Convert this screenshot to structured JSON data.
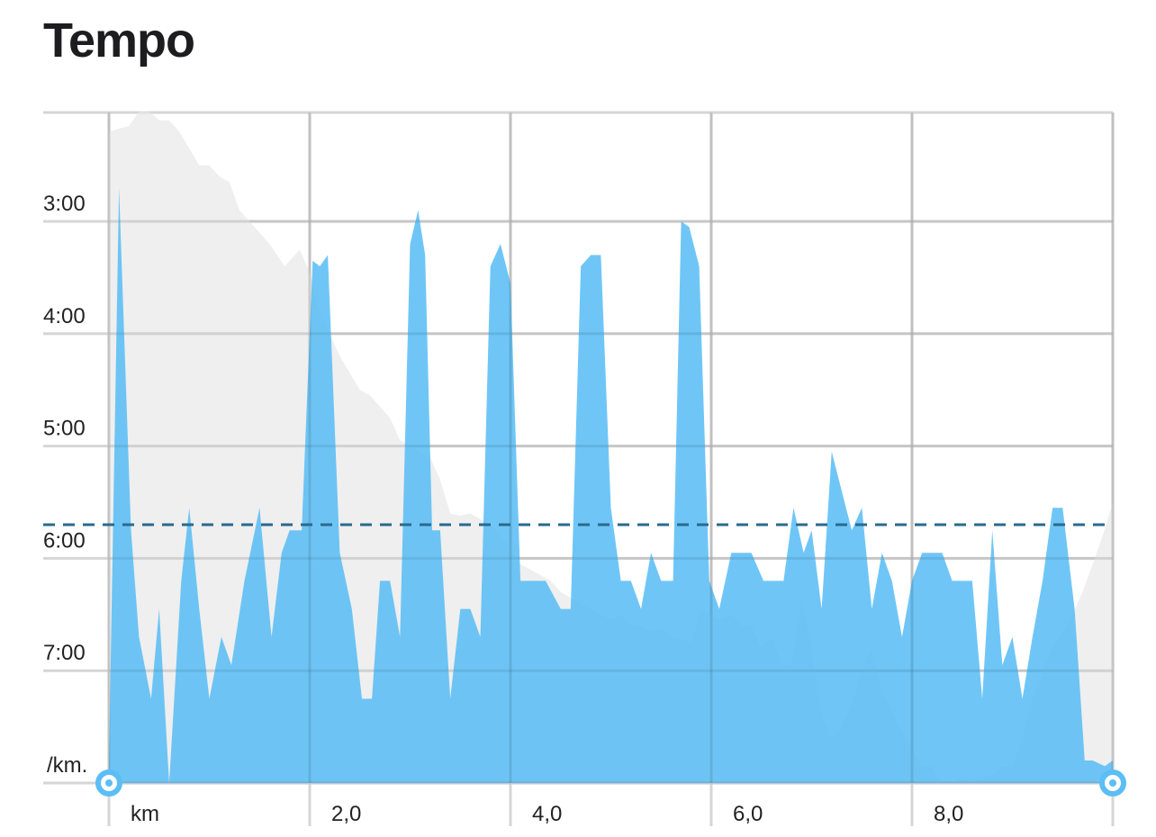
{
  "title": "Tempo",
  "colors": {
    "pace_fill": "#5bbef5",
    "elevation_fill": "#e6e6e6",
    "average_line": "#2a6a8f",
    "grid": "#d6d6d6",
    "handle": "#5bbef5"
  },
  "chart_data": {
    "type": "area",
    "title": "Tempo",
    "xlabel": "km",
    "ylabel": "/km.",
    "xlim": [
      0,
      10
    ],
    "x_ticks": [
      0,
      2,
      4,
      6,
      8,
      10
    ],
    "x_tick_labels": [
      "km",
      "2,0",
      "4,0",
      "6,0",
      "8,0",
      ""
    ],
    "ylim": [
      2.03,
      8.0
    ],
    "y_reversed": true,
    "y_ticks": [
      3,
      4,
      5,
      6,
      7,
      8
    ],
    "y_tick_labels": [
      "3:00",
      "4:00",
      "5:00",
      "6:00",
      "7:00",
      "/km."
    ],
    "grid": true,
    "average_pace": 5.7,
    "series": [
      {
        "kind": "pace",
        "x": [
          0.0,
          0.1,
          0.22,
          0.3,
          0.42,
          0.5,
          0.6,
          0.72,
          0.8,
          0.9,
          1.0,
          1.12,
          1.22,
          1.35,
          1.5,
          1.62,
          1.72,
          1.8,
          1.92,
          2.03,
          2.1,
          2.18,
          2.3,
          2.42,
          2.52,
          2.62,
          2.7,
          2.8,
          2.9,
          3.0,
          3.08,
          3.15,
          3.22,
          3.3,
          3.4,
          3.5,
          3.6,
          3.7,
          3.8,
          3.9,
          4.0,
          4.1,
          4.2,
          4.35,
          4.5,
          4.6,
          4.7,
          4.8,
          4.9,
          5.0,
          5.1,
          5.2,
          5.3,
          5.4,
          5.5,
          5.62,
          5.7,
          5.78,
          5.88,
          5.98,
          6.08,
          6.2,
          6.3,
          6.4,
          6.52,
          6.62,
          6.72,
          6.82,
          6.92,
          7.0,
          7.1,
          7.2,
          7.3,
          7.4,
          7.5,
          7.6,
          7.7,
          7.8,
          7.9,
          8.0,
          8.1,
          8.2,
          8.3,
          8.4,
          8.5,
          8.6,
          8.7,
          8.8,
          8.9,
          9.0,
          9.1,
          9.2,
          9.3,
          9.4,
          9.5,
          9.62,
          9.72,
          9.8,
          9.92,
          10.0
        ],
        "values": [
          7.8,
          2.7,
          5.75,
          6.7,
          7.25,
          6.45,
          8.0,
          6.2,
          5.55,
          6.45,
          7.25,
          6.7,
          6.95,
          6.2,
          5.55,
          6.7,
          5.95,
          5.75,
          5.75,
          3.35,
          3.4,
          3.3,
          5.95,
          6.45,
          7.25,
          7.25,
          6.2,
          6.2,
          6.7,
          3.2,
          2.9,
          3.3,
          5.75,
          5.75,
          7.25,
          6.45,
          6.45,
          6.7,
          3.4,
          3.2,
          3.55,
          6.2,
          6.2,
          6.2,
          6.45,
          6.45,
          3.4,
          3.3,
          3.3,
          5.55,
          6.2,
          6.2,
          6.45,
          5.95,
          6.2,
          6.2,
          3.0,
          3.05,
          3.4,
          6.2,
          6.45,
          5.95,
          5.95,
          5.95,
          6.2,
          6.2,
          6.2,
          5.55,
          5.95,
          5.75,
          6.45,
          5.05,
          5.4,
          5.75,
          5.55,
          6.45,
          5.95,
          6.2,
          6.7,
          6.2,
          5.95,
          5.95,
          5.95,
          6.2,
          6.2,
          6.2,
          7.25,
          5.75,
          6.95,
          6.7,
          7.25,
          6.7,
          6.2,
          5.55,
          5.55,
          6.45,
          7.8,
          7.8,
          7.85,
          7.8
        ]
      },
      {
        "kind": "elevation",
        "x": [
          0.0,
          0.2,
          0.3,
          0.4,
          0.5,
          0.6,
          0.7,
          0.8,
          0.9,
          1.0,
          1.1,
          1.2,
          1.3,
          1.4,
          1.5,
          1.6,
          1.75,
          1.9,
          2.0,
          2.1,
          2.2,
          2.3,
          2.4,
          2.5,
          2.6,
          2.7,
          2.8,
          2.9,
          3.0,
          3.1,
          3.2,
          3.3,
          3.4,
          3.5,
          3.6,
          3.7,
          3.8,
          3.9,
          4.0,
          4.1,
          4.2,
          4.3,
          4.4,
          4.5,
          4.6,
          4.7,
          4.8,
          4.9,
          5.0,
          5.1,
          5.2,
          5.3,
          5.4,
          5.5,
          5.6,
          5.7,
          5.8,
          5.9,
          6.0,
          6.1,
          6.2,
          6.3,
          6.4,
          6.5,
          6.6,
          6.7,
          6.8,
          6.9,
          7.0,
          7.1,
          7.2,
          7.3,
          7.4,
          7.5,
          7.6,
          7.7,
          7.8,
          7.9,
          8.0,
          8.1,
          8.2,
          8.3,
          8.4,
          8.5,
          8.6,
          8.7,
          8.8,
          8.9,
          9.0,
          9.1,
          9.2,
          9.3,
          9.4,
          9.5,
          9.6,
          9.7,
          9.8,
          9.9,
          10.0
        ],
        "values": [
          2.2,
          2.15,
          2.02,
          2.02,
          2.1,
          2.1,
          2.2,
          2.35,
          2.5,
          2.5,
          2.6,
          2.65,
          2.9,
          3.0,
          3.1,
          3.2,
          3.4,
          3.25,
          3.45,
          3.8,
          4.0,
          4.2,
          4.35,
          4.5,
          4.55,
          4.65,
          4.75,
          4.95,
          5.0,
          5.05,
          5.1,
          5.3,
          5.6,
          5.62,
          5.6,
          5.65,
          5.7,
          5.8,
          5.9,
          6.05,
          6.1,
          6.15,
          6.2,
          6.3,
          6.35,
          6.4,
          6.45,
          6.5,
          6.55,
          6.5,
          6.6,
          6.6,
          6.65,
          6.62,
          6.7,
          6.72,
          6.75,
          6.45,
          6.5,
          6.55,
          6.5,
          6.6,
          6.6,
          6.8,
          6.7,
          6.95,
          6.95,
          6.35,
          6.8,
          7.4,
          7.6,
          7.5,
          7.3,
          7.0,
          6.8,
          7.2,
          7.35,
          7.55,
          7.7,
          7.85,
          7.85,
          8.0,
          8.02,
          7.95,
          7.98,
          7.95,
          7.92,
          7.85,
          7.85,
          7.6,
          7.25,
          7.0,
          6.8,
          6.65,
          6.5,
          6.3,
          6.05,
          5.8,
          5.5
        ]
      }
    ]
  }
}
